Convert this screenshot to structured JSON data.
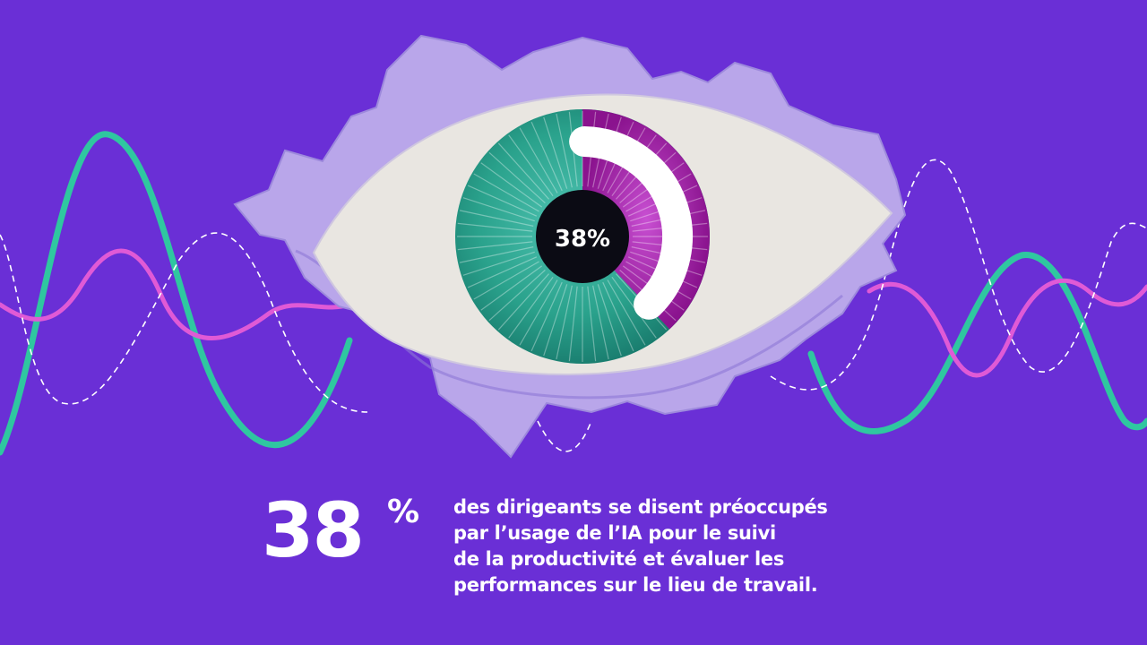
{
  "gauge": {
    "label": "38%",
    "value_percent": 38
  },
  "headline": {
    "number": "38",
    "percent_sign": "%",
    "lines": [
      "des dirigeants se disent préoccupés",
      "par l’usage de l’IA pour le suivi",
      "de la productivité et évaluer les",
      "performances sur le lieu de travail."
    ]
  },
  "colors": {
    "background": "#6a2fd6",
    "paper": "#b9a6ea",
    "eye_white": "#e9e6e1",
    "iris_teal": "#2aa28c",
    "arc_magenta": "#a31fa5",
    "wave_green": "#2fc7a0",
    "wave_pink": "#e05ad6",
    "pupil": "#0b0b14",
    "text": "#ffffff"
  },
  "icons": {
    "eye": "eye-illustration",
    "waves": "signal-waves"
  }
}
